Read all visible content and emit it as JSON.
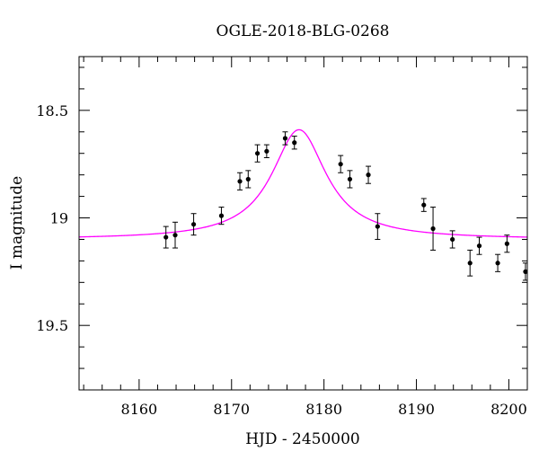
{
  "chart_data": {
    "type": "scatter",
    "title": "OGLE-2018-BLG-0268",
    "xlabel": "HJD - 2450000",
    "ylabel": "I magnitude",
    "xlim": [
      8153.5,
      8202
    ],
    "ylim": [
      19.8,
      18.25
    ],
    "y_inverted": true,
    "grid": false,
    "x_ticks": [
      8160,
      8170,
      8180,
      8190,
      8200
    ],
    "x_tick_labels": [
      "8160",
      "8170",
      "8180",
      "8190",
      "8200"
    ],
    "y_ticks": [
      18.5,
      19,
      19.5
    ],
    "y_tick_labels": [
      "18.5",
      "19",
      "19.5"
    ],
    "model": {
      "color": "#ff00ff",
      "baseline": 19.1,
      "t0": 8177.3,
      "peak": 18.59,
      "tE": 3.6
    },
    "points": [
      {
        "x": 8162.9,
        "y": 19.09,
        "err": 0.05
      },
      {
        "x": 8163.9,
        "y": 19.08,
        "err": 0.06
      },
      {
        "x": 8165.9,
        "y": 19.03,
        "err": 0.05
      },
      {
        "x": 8168.9,
        "y": 18.99,
        "err": 0.04
      },
      {
        "x": 8170.9,
        "y": 18.83,
        "err": 0.04
      },
      {
        "x": 8171.8,
        "y": 18.82,
        "err": 0.04
      },
      {
        "x": 8172.8,
        "y": 18.7,
        "err": 0.04
      },
      {
        "x": 8173.8,
        "y": 18.69,
        "err": 0.03
      },
      {
        "x": 8175.8,
        "y": 18.63,
        "err": 0.03
      },
      {
        "x": 8176.8,
        "y": 18.65,
        "err": 0.03
      },
      {
        "x": 8181.8,
        "y": 18.75,
        "err": 0.04
      },
      {
        "x": 8182.8,
        "y": 18.82,
        "err": 0.04
      },
      {
        "x": 8184.8,
        "y": 18.8,
        "err": 0.04
      },
      {
        "x": 8185.8,
        "y": 19.04,
        "err": 0.06
      },
      {
        "x": 8190.8,
        "y": 18.94,
        "err": 0.03
      },
      {
        "x": 8191.8,
        "y": 19.05,
        "err": 0.1
      },
      {
        "x": 8193.9,
        "y": 19.1,
        "err": 0.04
      },
      {
        "x": 8195.8,
        "y": 19.21,
        "err": 0.06
      },
      {
        "x": 8196.8,
        "y": 19.13,
        "err": 0.04
      },
      {
        "x": 8198.8,
        "y": 19.21,
        "err": 0.04
      },
      {
        "x": 8199.8,
        "y": 19.12,
        "err": 0.04
      },
      {
        "x": 8201.8,
        "y": 19.25,
        "err": 0.04
      }
    ]
  }
}
